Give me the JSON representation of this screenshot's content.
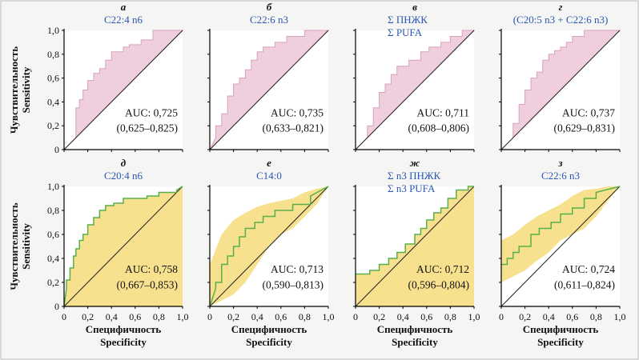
{
  "axis_labels": {
    "y_ru": "Чувствительность",
    "y_en": "Sensitivity",
    "x_ru": "Специфичность",
    "x_en": "Specificity"
  },
  "tick_labels": [
    "0",
    "0,2",
    "0,4",
    "0,6",
    "0,8",
    "1,0"
  ],
  "colors": {
    "pink_fill": "#efcfdd",
    "pink_stroke": "#d9a0bd",
    "yellow_fill": "#f7e08e",
    "green_line": "#58b04a",
    "title_blue": "#2a57b5",
    "diag": "#222222"
  },
  "panels": [
    {
      "letter": "а",
      "title": [
        "C22:4 n6"
      ],
      "auc": "AUC: 0,725",
      "ci": "(0,625–0,825)"
    },
    {
      "letter": "б",
      "title": [
        "C22:6 n3"
      ],
      "auc": "AUC: 0,735",
      "ci": "(0,633–0,821)"
    },
    {
      "letter": "в",
      "title": [
        "Σ ПНЖК",
        "Σ PUFA"
      ],
      "auc": "AUC: 0,711",
      "ci": "(0,608–0,806)"
    },
    {
      "letter": "г",
      "title": [
        "(C20:5 n3 + C22:6 n3)"
      ],
      "auc": "AUC: 0,737",
      "ci": "(0,629–0,831)"
    },
    {
      "letter": "д",
      "title": [
        "C20:4 n6"
      ],
      "auc": "AUC: 0,758",
      "ci": "(0,667–0,853)"
    },
    {
      "letter": "е",
      "title": [
        "C14:0"
      ],
      "auc": "AUC: 0,713",
      "ci": "(0,590–0,813)"
    },
    {
      "letter": "ж",
      "title": [
        "Σ n3 ПНЖК",
        "Σ n3 PUFA"
      ],
      "auc": "AUC: 0,712",
      "ci": "(0,596–0,804)"
    },
    {
      "letter": "з",
      "title": [
        "C22:6 n3"
      ],
      "auc": "AUC: 0,724",
      "ci": "(0,611–0,824)"
    }
  ],
  "chart_data": [
    {
      "type": "line",
      "subtitle": "C22:4 n6",
      "style": "pink-fill",
      "xlim": [
        0,
        1
      ],
      "ylim": [
        0,
        1
      ],
      "xlabel": "Специфичность / Specificity",
      "ylabel": "Чувствительность / Sensitivity",
      "x": [
        0,
        0.1,
        0.1,
        0.13,
        0.13,
        0.16,
        0.16,
        0.2,
        0.2,
        0.25,
        0.25,
        0.3,
        0.3,
        0.35,
        0.35,
        0.4,
        0.4,
        0.5,
        0.5,
        0.55,
        0.55,
        0.65,
        0.65,
        0.75,
        0.75,
        0.8,
        0.8,
        1.0
      ],
      "y": [
        0,
        0.1,
        0.35,
        0.35,
        0.42,
        0.42,
        0.5,
        0.5,
        0.58,
        0.58,
        0.64,
        0.64,
        0.68,
        0.68,
        0.75,
        0.75,
        0.82,
        0.82,
        0.86,
        0.86,
        0.88,
        0.88,
        0.92,
        0.92,
        1.0,
        1.0,
        1.0,
        1.0
      ],
      "diagonal": true,
      "auc": 0.725,
      "ci": [
        0.625,
        0.825
      ]
    },
    {
      "type": "line",
      "subtitle": "C22:6 n3",
      "style": "pink-fill",
      "xlim": [
        0,
        1
      ],
      "ylim": [
        0,
        1
      ],
      "xlabel": "Специфичность / Specificity",
      "ylabel": "Чувствительность / Sensitivity",
      "x": [
        0,
        0.05,
        0.05,
        0.1,
        0.1,
        0.15,
        0.15,
        0.2,
        0.2,
        0.25,
        0.25,
        0.3,
        0.3,
        0.35,
        0.35,
        0.4,
        0.4,
        0.45,
        0.45,
        0.55,
        0.55,
        0.65,
        0.65,
        0.8,
        0.8,
        1.0
      ],
      "y": [
        0,
        0.1,
        0.2,
        0.2,
        0.3,
        0.3,
        0.45,
        0.45,
        0.55,
        0.55,
        0.6,
        0.6,
        0.67,
        0.67,
        0.75,
        0.75,
        0.82,
        0.82,
        0.86,
        0.86,
        0.9,
        0.9,
        0.95,
        0.95,
        1.0,
        1.0
      ],
      "diagonal": true,
      "auc": 0.735,
      "ci": [
        0.633,
        0.821
      ]
    },
    {
      "type": "line",
      "subtitle": "Σ ПНЖК / Σ PUFA",
      "style": "pink-fill",
      "xlim": [
        0,
        1
      ],
      "ylim": [
        0,
        1
      ],
      "xlabel": "Специфичность / Specificity",
      "ylabel": "Чувствительность / Sensitivity",
      "x": [
        0,
        0.05,
        0.1,
        0.1,
        0.15,
        0.15,
        0.2,
        0.2,
        0.25,
        0.25,
        0.3,
        0.3,
        0.35,
        0.35,
        0.45,
        0.45,
        0.55,
        0.55,
        0.62,
        0.62,
        0.72,
        0.72,
        0.8,
        0.8,
        0.9,
        0.9,
        1.0
      ],
      "y": [
        0,
        0.05,
        0.1,
        0.2,
        0.2,
        0.35,
        0.35,
        0.48,
        0.48,
        0.55,
        0.55,
        0.63,
        0.63,
        0.7,
        0.7,
        0.75,
        0.75,
        0.82,
        0.82,
        0.86,
        0.86,
        0.9,
        0.9,
        0.95,
        0.95,
        1.0,
        1.0
      ],
      "diagonal": true,
      "auc": 0.711,
      "ci": [
        0.608,
        0.806
      ]
    },
    {
      "type": "line",
      "subtitle": "(C20:5 n3 + C22:6 n3)",
      "style": "pink-fill",
      "xlim": [
        0,
        1
      ],
      "ylim": [
        0,
        1
      ],
      "xlabel": "Специфичность / Specificity",
      "ylabel": "Чувствительность / Sensitivity",
      "x": [
        0,
        0.05,
        0.1,
        0.1,
        0.15,
        0.15,
        0.2,
        0.2,
        0.25,
        0.25,
        0.3,
        0.3,
        0.35,
        0.35,
        0.4,
        0.4,
        0.45,
        0.45,
        0.5,
        0.5,
        0.55,
        0.55,
        0.6,
        0.6,
        0.7,
        0.7,
        0.8,
        0.8,
        1.0
      ],
      "y": [
        0,
        0.05,
        0.1,
        0.22,
        0.22,
        0.38,
        0.38,
        0.5,
        0.5,
        0.6,
        0.6,
        0.65,
        0.65,
        0.75,
        0.75,
        0.8,
        0.8,
        0.83,
        0.83,
        0.86,
        0.86,
        0.9,
        0.9,
        0.95,
        0.95,
        1.0,
        1.0,
        1.0,
        1.0
      ],
      "diagonal": true,
      "auc": 0.737,
      "ci": [
        0.629,
        0.831
      ]
    },
    {
      "type": "line",
      "subtitle": "C20:4 n6",
      "style": "yellow-area",
      "xlim": [
        0,
        1
      ],
      "ylim": [
        0,
        1
      ],
      "xlabel": "Специфичность / Specificity",
      "ylabel": "Чувствительность / Sensitivity",
      "x": [
        0,
        0.02,
        0.02,
        0.05,
        0.05,
        0.08,
        0.08,
        0.1,
        0.1,
        0.13,
        0.13,
        0.16,
        0.16,
        0.2,
        0.2,
        0.25,
        0.25,
        0.3,
        0.3,
        0.35,
        0.35,
        0.42,
        0.42,
        0.5,
        0.5,
        0.7,
        0.7,
        0.8,
        0.8,
        0.95,
        0.95,
        1.0
      ],
      "y": [
        0,
        0.15,
        0.22,
        0.22,
        0.32,
        0.32,
        0.42,
        0.42,
        0.48,
        0.48,
        0.55,
        0.55,
        0.6,
        0.6,
        0.68,
        0.68,
        0.74,
        0.74,
        0.8,
        0.8,
        0.84,
        0.84,
        0.86,
        0.86,
        0.9,
        0.9,
        0.92,
        0.92,
        0.95,
        0.95,
        0.97,
        1.0
      ],
      "diagonal": true,
      "auc": 0.758,
      "ci": [
        0.667,
        0.853
      ]
    },
    {
      "type": "line",
      "subtitle": "C14:0",
      "style": "ci-band",
      "xlim": [
        0,
        1
      ],
      "ylim": [
        0,
        1
      ],
      "xlabel": "Специфичность / Specificity",
      "ylabel": "Чувствительность / Sensitivity",
      "x": [
        0,
        0.05,
        0.05,
        0.1,
        0.1,
        0.15,
        0.15,
        0.2,
        0.2,
        0.25,
        0.25,
        0.3,
        0.3,
        0.38,
        0.38,
        0.45,
        0.45,
        0.55,
        0.55,
        0.7,
        0.7,
        0.85,
        0.85,
        1.0
      ],
      "y": [
        0,
        0.15,
        0.2,
        0.2,
        0.35,
        0.35,
        0.42,
        0.42,
        0.5,
        0.5,
        0.58,
        0.58,
        0.65,
        0.65,
        0.7,
        0.7,
        0.75,
        0.75,
        0.8,
        0.8,
        0.85,
        0.85,
        0.92,
        1.0
      ],
      "band_x": [
        0,
        0.1,
        0.2,
        0.3,
        0.4,
        0.5,
        0.6,
        0.7,
        0.8,
        0.9,
        1.0
      ],
      "band_upper": [
        0.35,
        0.6,
        0.72,
        0.78,
        0.83,
        0.86,
        0.88,
        0.9,
        0.95,
        0.98,
        1.0
      ],
      "band_lower": [
        0,
        0.05,
        0.1,
        0.2,
        0.35,
        0.5,
        0.6,
        0.65,
        0.75,
        0.85,
        1.0
      ],
      "diagonal": true,
      "auc": 0.713,
      "ci": [
        0.59,
        0.813
      ]
    },
    {
      "type": "line",
      "subtitle": "Σ n3 ПНЖК / Σ n3 PUFA",
      "style": "yellow-area",
      "xlim": [
        0,
        1
      ],
      "ylim": [
        0,
        1
      ],
      "xlabel": "Специфичность / Specificity",
      "ylabel": "Чувствительность / Sensitivity",
      "x": [
        0,
        0.12,
        0.12,
        0.2,
        0.2,
        0.28,
        0.28,
        0.35,
        0.35,
        0.42,
        0.42,
        0.5,
        0.5,
        0.55,
        0.55,
        0.6,
        0.6,
        0.66,
        0.66,
        0.72,
        0.72,
        0.78,
        0.78,
        0.85,
        0.85,
        0.95,
        0.95,
        1.0
      ],
      "y": [
        0.27,
        0.27,
        0.3,
        0.3,
        0.35,
        0.35,
        0.4,
        0.4,
        0.45,
        0.45,
        0.52,
        0.52,
        0.6,
        0.6,
        0.65,
        0.65,
        0.72,
        0.72,
        0.78,
        0.78,
        0.82,
        0.82,
        0.9,
        0.9,
        0.97,
        0.97,
        1.0,
        1.0
      ],
      "diagonal": true,
      "auc": 0.712,
      "ci": [
        0.596,
        0.804
      ]
    },
    {
      "type": "line",
      "subtitle": "C22:6 n3",
      "style": "ci-band",
      "xlim": [
        0,
        1
      ],
      "ylim": [
        0,
        1
      ],
      "xlabel": "Специфичность / Specificity",
      "ylabel": "Чувствительность / Sensitivity",
      "x": [
        0,
        0.05,
        0.05,
        0.1,
        0.1,
        0.15,
        0.15,
        0.25,
        0.25,
        0.32,
        0.32,
        0.42,
        0.42,
        0.5,
        0.5,
        0.6,
        0.6,
        0.7,
        0.7,
        0.8,
        0.8,
        1.0
      ],
      "y": [
        0.35,
        0.35,
        0.4,
        0.4,
        0.45,
        0.45,
        0.5,
        0.5,
        0.6,
        0.6,
        0.65,
        0.65,
        0.7,
        0.7,
        0.77,
        0.77,
        0.82,
        0.82,
        0.9,
        0.9,
        0.95,
        1.0
      ],
      "band_x": [
        0,
        0.1,
        0.2,
        0.3,
        0.4,
        0.5,
        0.6,
        0.7,
        0.8,
        0.9,
        1.0
      ],
      "band_upper": [
        0.55,
        0.6,
        0.68,
        0.75,
        0.8,
        0.85,
        0.92,
        0.97,
        0.98,
        1.0,
        1.0
      ],
      "band_lower": [
        0.2,
        0.25,
        0.3,
        0.38,
        0.45,
        0.55,
        0.6,
        0.65,
        0.75,
        0.88,
        1.0
      ],
      "diagonal": true,
      "auc": 0.724,
      "ci": [
        0.611,
        0.824
      ]
    }
  ]
}
